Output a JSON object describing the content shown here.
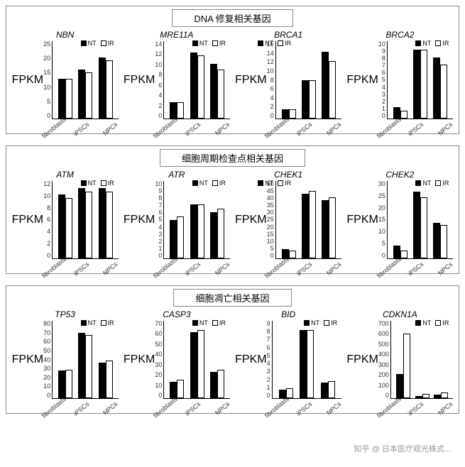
{
  "global": {
    "ylabel": "FPKM",
    "categories": [
      "fibroblasts",
      "iPSCs",
      "NPCs"
    ],
    "legend_labels": [
      "NT",
      "IR"
    ],
    "series_colors": {
      "NT": "#000000",
      "IR": "#ffffff"
    },
    "bar_border": "#000000",
    "axis_width": 1.5,
    "title_fontsize": 13,
    "chart_title_fontsize": 12,
    "tick_fontsize": 9,
    "label_fontsize": 10,
    "font_family": "Arial"
  },
  "watermark": "知乎 @ 日本医疗观光株式...",
  "sections": [
    {
      "title": "DNA 修复相关基因",
      "charts": [
        {
          "title": "NBN",
          "ylim": [
            0,
            25
          ],
          "ytick_step": 5,
          "legend_pos": "right",
          "values": {
            "NT": [
              13,
              16,
              20
            ],
            "IR": [
              13,
              15,
              19
            ]
          }
        },
        {
          "title": "MRE11A",
          "ylim": [
            0,
            14
          ],
          "ytick_step": 2,
          "legend_pos": "right",
          "values": {
            "NT": [
              3,
              12,
              10
            ],
            "IR": [
              3,
              11.5,
              9
            ]
          }
        },
        {
          "title": "BRCA1",
          "ylim": [
            0,
            16
          ],
          "ytick_step": 2,
          "legend_pos": "left",
          "values": {
            "NT": [
              2,
              8,
              14
            ],
            "IR": [
              2,
              8,
              12
            ]
          }
        },
        {
          "title": "BRCA2",
          "ylim": [
            0,
            10
          ],
          "ytick_step": 1,
          "legend_pos": "right",
          "values": {
            "NT": [
              1.5,
              9,
              8
            ],
            "IR": [
              1,
              9,
              7
            ]
          }
        }
      ]
    },
    {
      "title": "细胞周期检查点相关基因",
      "charts": [
        {
          "title": "ATM",
          "ylim": [
            0,
            12
          ],
          "ytick_step": 2,
          "legend_pos": "right",
          "values": {
            "NT": [
              10,
              11,
              11
            ],
            "IR": [
              9.5,
              10.5,
              10.5
            ]
          }
        },
        {
          "title": "ATR",
          "ylim": [
            0,
            10
          ],
          "ytick_step": 1,
          "legend_pos": "right",
          "values": {
            "NT": [
              5,
              7,
              6
            ],
            "IR": [
              5.5,
              7,
              6.5
            ]
          }
        },
        {
          "title": "CHEK1",
          "ylim": [
            0,
            50
          ],
          "ytick_step": 5,
          "legend_pos": "left",
          "values": {
            "NT": [
              6,
              42,
              38
            ],
            "IR": [
              5,
              44,
              40
            ]
          }
        },
        {
          "title": "CHEK2",
          "ylim": [
            0,
            30
          ],
          "ytick_step": 5,
          "legend_pos": "right",
          "values": {
            "NT": [
              5,
              26,
              14
            ],
            "IR": [
              3,
              24,
              13
            ]
          }
        }
      ]
    },
    {
      "title": "细胞凋亡相关基因",
      "charts": [
        {
          "title": "TP53",
          "ylim": [
            0,
            80
          ],
          "ytick_step": 10,
          "legend_pos": "right",
          "values": {
            "NT": [
              29,
              68,
              37
            ],
            "IR": [
              30,
              66,
              39
            ]
          }
        },
        {
          "title": "CASP3",
          "ylim": [
            0,
            70
          ],
          "ytick_step": 10,
          "legend_pos": "right",
          "values": {
            "NT": [
              15,
              60,
              24
            ],
            "IR": [
              17,
              62,
              26
            ]
          }
        },
        {
          "title": "BID",
          "ylim": [
            0,
            9
          ],
          "ytick_step": 1,
          "legend_pos": "right",
          "values": {
            "NT": [
              1,
              8,
              1.8
            ],
            "IR": [
              1.2,
              8,
              2
            ]
          }
        },
        {
          "title": "CDKN1A",
          "ylim": [
            0,
            700
          ],
          "ytick_step": 100,
          "legend_pos": "right",
          "values": {
            "NT": [
              220,
              20,
              30
            ],
            "IR": [
              590,
              40,
              55
            ]
          }
        }
      ]
    }
  ]
}
